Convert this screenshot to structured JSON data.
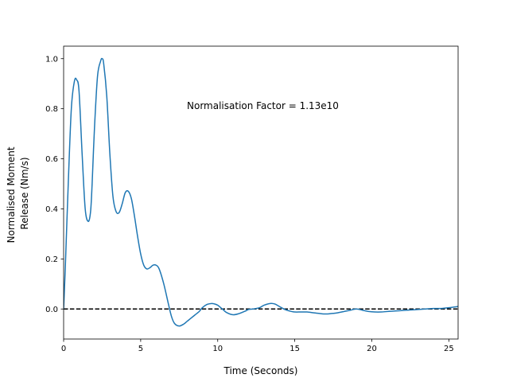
{
  "chart_data": {
    "type": "line",
    "title": "",
    "xlabel": "Time (Seconds)",
    "ylabel": [
      "Normalised Moment",
      "Release (Nm/s)"
    ],
    "xlim": [
      0,
      25.6
    ],
    "ylim": [
      -0.12,
      1.05
    ],
    "x_ticks": [
      0,
      5,
      10,
      15,
      20,
      25
    ],
    "x_tick_labels": [
      "0",
      "5",
      "10",
      "15",
      "20",
      "25"
    ],
    "y_ticks": [
      0.0,
      0.2,
      0.4,
      0.6,
      0.8,
      1.0
    ],
    "y_tick_labels": [
      "0.0",
      "0.2",
      "0.4",
      "0.6",
      "0.8",
      "1.0"
    ],
    "grid": false,
    "annotation": "Normalisation Factor = 1.13e10",
    "reference_line": {
      "y": 0.0,
      "style": "dashed",
      "color": "#000000"
    },
    "series": [
      {
        "color": "#1f77b4",
        "x": [
          0,
          0.1,
          0.3,
          0.5,
          0.7,
          0.85,
          1.0,
          1.2,
          1.4,
          1.6,
          1.75,
          1.85,
          2.0,
          2.2,
          2.4,
          2.5,
          2.6,
          2.8,
          3.0,
          3.2,
          3.4,
          3.6,
          3.8,
          4.0,
          4.2,
          4.4,
          4.6,
          4.8,
          5.0,
          5.2,
          5.4,
          5.6,
          5.8,
          6.0,
          6.2,
          6.5,
          6.8,
          7.0,
          7.2,
          7.5,
          7.8,
          8.0,
          8.2,
          8.5,
          8.8,
          9.0,
          9.3,
          9.6,
          9.8,
          10.0,
          10.3,
          10.6,
          11.0,
          11.4,
          11.8,
          12.0,
          12.3,
          12.7,
          13.0,
          13.4,
          13.7,
          14.0,
          14.4,
          14.8,
          15.0,
          15.4,
          15.8,
          16.2,
          16.6,
          17.0,
          17.4,
          17.8,
          18.2,
          18.6,
          19.0,
          19.4,
          19.8,
          20.2,
          20.6,
          21.0,
          21.5,
          22.0,
          22.5,
          23.0,
          23.5,
          24.0,
          24.5,
          25.0,
          25.6
        ],
        "y": [
          0.0,
          0.15,
          0.5,
          0.8,
          0.91,
          0.915,
          0.87,
          0.62,
          0.4,
          0.35,
          0.39,
          0.5,
          0.72,
          0.93,
          0.99,
          1.0,
          0.98,
          0.85,
          0.62,
          0.45,
          0.39,
          0.385,
          0.42,
          0.465,
          0.47,
          0.44,
          0.37,
          0.29,
          0.22,
          0.175,
          0.16,
          0.165,
          0.175,
          0.175,
          0.16,
          0.1,
          0.02,
          -0.03,
          -0.058,
          -0.068,
          -0.06,
          -0.05,
          -0.04,
          -0.025,
          -0.01,
          0.005,
          0.018,
          0.022,
          0.02,
          0.015,
          0.0,
          -0.015,
          -0.023,
          -0.018,
          -0.008,
          -0.002,
          0.0,
          0.005,
          0.015,
          0.022,
          0.02,
          0.01,
          -0.003,
          -0.01,
          -0.012,
          -0.012,
          -0.012,
          -0.015,
          -0.018,
          -0.02,
          -0.018,
          -0.015,
          -0.01,
          -0.005,
          0.0,
          -0.005,
          -0.01,
          -0.012,
          -0.012,
          -0.01,
          -0.008,
          -0.006,
          -0.004,
          -0.002,
          0.0,
          0.002,
          0.002,
          0.005,
          0.01
        ]
      }
    ]
  }
}
